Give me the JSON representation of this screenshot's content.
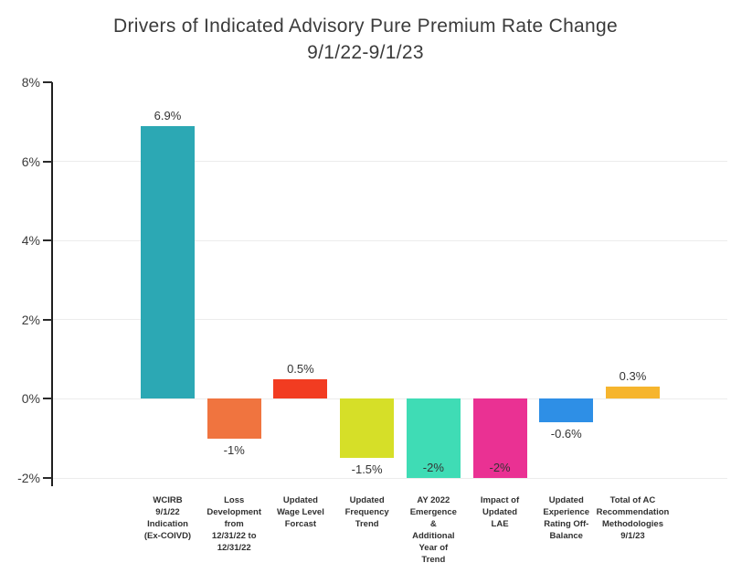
{
  "title": {
    "line1": "Drivers of Indicated Advisory Pure Premium Rate Change",
    "line2": "9/1/22-9/1/23"
  },
  "chart_data": {
    "type": "bar",
    "title": "Drivers of Indicated Advisory Pure Premium Rate Change 9/1/22-9/1/23",
    "categories": [
      "WCIRB\n9/1/22\nIndication\n(Ex-COIVD)",
      "Loss\nDevelopment\nfrom\n12/31/22 to\n12/31/22",
      "Updated\nWage Level\nForcast",
      "Updated\nFrequency\nTrend",
      "AY 2022\nEmergence\n&\nAdditional\nYear of\nTrend",
      "Impact of\nUpdated\nLAE",
      "Updated\nExperience\nRating Off-\nBalance",
      "Total of AC\nRecommendation\nMethodologies\n9/1/23"
    ],
    "values": [
      6.9,
      -1,
      0.5,
      -1.5,
      -2,
      -2,
      -0.6,
      0.3
    ],
    "value_labels": [
      "6.9%",
      "-1%",
      "0.5%",
      "-1.5%",
      "-2%",
      "-2%",
      "-0.6%",
      "0.3%"
    ],
    "bar_colors": [
      "#2ca8b4",
      "#f0743f",
      "#f23c21",
      "#d6df28",
      "#3fdcb5",
      "#ea3193",
      "#2e8fe6",
      "#f6b52d"
    ],
    "xlabel": "",
    "ylabel": "",
    "ylim": [
      -2,
      8
    ],
    "yticks": [
      8,
      6,
      4,
      2,
      0,
      -2
    ],
    "ytick_labels": [
      "8%",
      "6%",
      "4%",
      "2%",
      "0%",
      "-2%"
    ],
    "grid": true,
    "legend": "none"
  },
  "colors": {
    "grid": "#ececec",
    "axis": "#1f1f1f",
    "text": "#3b3b3b"
  }
}
